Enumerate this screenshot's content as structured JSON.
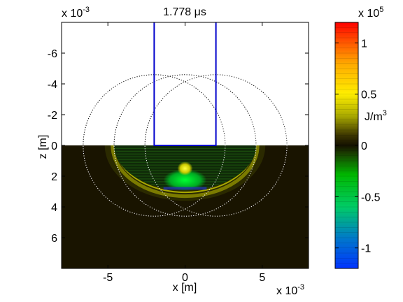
{
  "chart_data": {
    "type": "heatmap",
    "title": "1.778 μs",
    "xlabel": "x [m]",
    "ylabel": "z [m]",
    "x_exponent": "x 10",
    "x_exponent_power": "-3",
    "y_exponent": "x 10",
    "y_exponent_power": "-3",
    "xlim": [
      -8,
      8
    ],
    "ylim": [
      -8,
      8
    ],
    "y_reversed": true,
    "xticks": [
      -5,
      0,
      5
    ],
    "xtick_labels": [
      "-5",
      "0",
      "5"
    ],
    "yticks": [
      -6,
      -4,
      -2,
      0,
      2,
      4,
      6
    ],
    "ytick_labels": [
      "-6",
      "-4",
      "-2",
      "0",
      "2",
      "4",
      "6"
    ],
    "units_note": "x and z axis values in units of 1e-3 m",
    "colorbar": {
      "label": "J/m",
      "label_power": "3",
      "exponent": "x 10",
      "exponent_power": "5",
      "range": [
        -1.2,
        1.2
      ],
      "ticks": [
        -1,
        -0.5,
        0,
        0.5,
        1
      ],
      "tick_labels": [
        "-1",
        "-0.5",
        "0",
        "0.5",
        "1"
      ]
    },
    "colors": {
      "background_field": "#191400",
      "blue_outline": "#0000cc",
      "green": "#00cc00",
      "yellow": "#e6e600",
      "circle": "#ffffff"
    },
    "structures": {
      "rectangle": {
        "x": [
          -2,
          2
        ],
        "z": [
          -8,
          0
        ]
      },
      "circles": [
        {
          "cx": -2,
          "cz": 0,
          "r": 4.6
        },
        {
          "cx": 0,
          "cz": 0,
          "r": 4.6
        },
        {
          "cx": 2,
          "cz": 0,
          "r": 4.6
        }
      ],
      "interface_z": 0
    }
  }
}
